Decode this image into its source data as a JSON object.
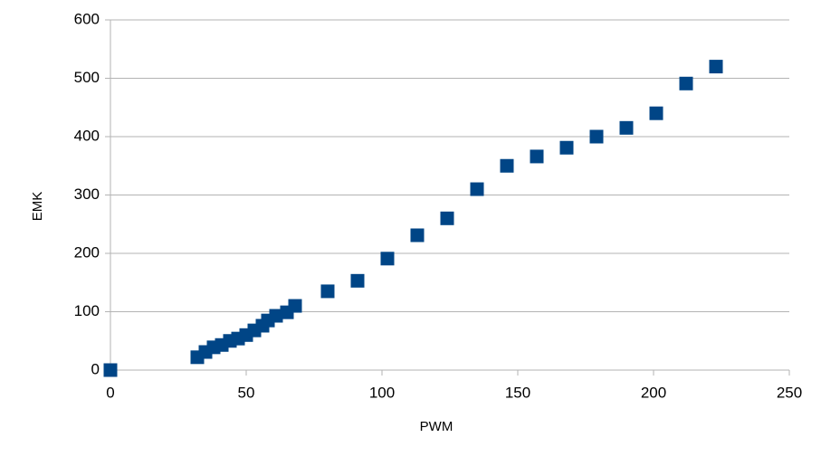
{
  "chart_data": {
    "type": "scatter",
    "x_label": "PWM",
    "y_label": "EMK",
    "series": [
      {
        "color": "#004586",
        "x": [
          0,
          32,
          35,
          38,
          41,
          44,
          47,
          50,
          53,
          56,
          58,
          61,
          65,
          68,
          80,
          91,
          102,
          113,
          124,
          135,
          146,
          157,
          168,
          179,
          190,
          201,
          212,
          223
        ],
        "values": [
          0,
          22,
          31,
          39,
          43,
          50,
          54,
          60,
          68,
          76,
          85,
          93,
          99,
          110,
          135,
          153,
          191,
          231,
          260,
          310,
          350,
          366,
          381,
          400,
          415,
          440,
          491,
          520
        ]
      }
    ],
    "xlim": [
      0,
      250
    ],
    "xticks": [
      0,
      50,
      100,
      150,
      200,
      250
    ],
    "ylim": [
      0,
      600
    ],
    "yticks": [
      0,
      100,
      200,
      300,
      400,
      500,
      600
    ],
    "grid": true
  }
}
